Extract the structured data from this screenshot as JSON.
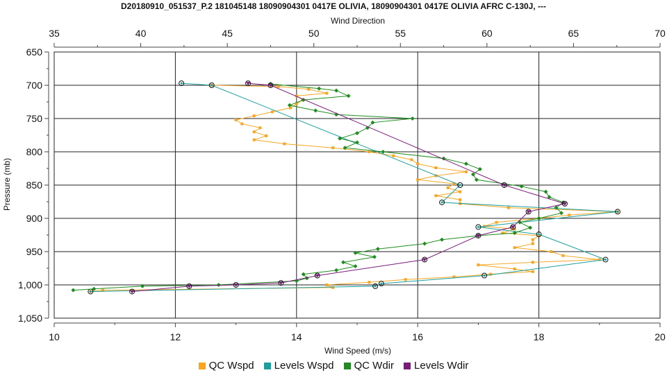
{
  "chart_data": {
    "type": "line",
    "title": "D20180910_051537_P.2 181045148 18090904301 0417E OLIVIA, 18090904301 0417E OLIVIA AFRC C-130J, ---",
    "top_axis_label": "Wind Direction",
    "xlabel": "Wind Speed (m/s)",
    "ylabel": "Pressure (mb)",
    "x_bottom_range": [
      10,
      20
    ],
    "x_bottom_ticks": [
      "10",
      "12",
      "14",
      "16",
      "18",
      "20"
    ],
    "x_top_range": [
      35,
      70
    ],
    "x_top_ticks": [
      "35",
      "40",
      "45",
      "50",
      "55",
      "60",
      "65",
      "70"
    ],
    "y_range": [
      650,
      1050
    ],
    "y_inverted": true,
    "y_ticks": [
      "650",
      "700",
      "750",
      "800",
      "850",
      "900",
      "950",
      "1,000",
      "1,050"
    ],
    "grid": true,
    "legend_position": "bottom",
    "series": [
      {
        "name": "QC Wspd",
        "axis": "bottom",
        "color": "#f5a623",
        "values": [
          [
            12.6,
            700
          ],
          [
            13.7,
            702
          ],
          [
            14.2,
            706
          ],
          [
            14.5,
            712
          ],
          [
            14.0,
            716
          ],
          [
            14.1,
            722
          ],
          [
            14.0,
            728
          ],
          [
            13.9,
            734
          ],
          [
            13.6,
            740
          ],
          [
            13.3,
            746
          ],
          [
            13.0,
            752
          ],
          [
            13.1,
            758
          ],
          [
            13.4,
            764
          ],
          [
            13.3,
            770
          ],
          [
            13.5,
            776
          ],
          [
            13.3,
            782
          ],
          [
            13.8,
            788
          ],
          [
            14.6,
            794
          ],
          [
            15.2,
            800
          ],
          [
            15.6,
            806
          ],
          [
            15.9,
            812
          ],
          [
            16.0,
            818
          ],
          [
            16.3,
            824
          ],
          [
            16.8,
            830
          ],
          [
            16.3,
            836
          ],
          [
            16.0,
            842
          ],
          [
            16.6,
            848
          ],
          [
            16.5,
            854
          ],
          [
            16.7,
            860
          ],
          [
            16.3,
            866
          ],
          [
            16.7,
            872
          ],
          [
            16.7,
            878
          ],
          [
            17.5,
            884
          ],
          [
            19.3,
            890
          ],
          [
            18.5,
            895
          ],
          [
            18.0,
            900
          ],
          [
            17.3,
            906
          ],
          [
            17.1,
            912
          ],
          [
            17.6,
            916
          ],
          [
            17.4,
            922
          ],
          [
            18.0,
            926
          ],
          [
            17.9,
            932
          ],
          [
            17.9,
            938
          ],
          [
            17.6,
            944
          ],
          [
            18.2,
            950
          ],
          [
            18.4,
            956
          ],
          [
            19.0,
            962
          ],
          [
            17.9,
            966
          ],
          [
            17.0,
            970
          ],
          [
            17.6,
            976
          ],
          [
            17.9,
            980
          ],
          [
            17.2,
            984
          ],
          [
            16.6,
            988
          ],
          [
            15.8,
            992
          ],
          [
            15.2,
            996
          ],
          [
            14.5,
            1000
          ],
          [
            14.6,
            1004
          ],
          [
            10.8,
            1008
          ],
          [
            10.6,
            1010
          ]
        ]
      },
      {
        "name": "Levels Wspd",
        "axis": "bottom",
        "color": "#1a9e9e",
        "values": [
          [
            12.1,
            697
          ],
          [
            12.6,
            700
          ],
          [
            16.7,
            850
          ],
          [
            16.4,
            876
          ],
          [
            19.3,
            890
          ],
          [
            17.0,
            913
          ],
          [
            18.0,
            924
          ],
          [
            19.1,
            962
          ],
          [
            17.1,
            986
          ],
          [
            15.4,
            998
          ],
          [
            15.3,
            1002
          ],
          [
            10.6,
            1010
          ]
        ]
      },
      {
        "name": "QC Wdir",
        "axis": "top",
        "color": "#1e8c1e",
        "values": [
          [
            47.5,
            698
          ],
          [
            50.3,
            705
          ],
          [
            51.3,
            708
          ],
          [
            52.0,
            716
          ],
          [
            49.4,
            722
          ],
          [
            48.6,
            730
          ],
          [
            50.1,
            738
          ],
          [
            51.3,
            744
          ],
          [
            55.7,
            750
          ],
          [
            53.4,
            756
          ],
          [
            53.1,
            764
          ],
          [
            52.5,
            772
          ],
          [
            51.5,
            780
          ],
          [
            52.5,
            786
          ],
          [
            51.8,
            794
          ],
          [
            54.0,
            800
          ],
          [
            57.5,
            810
          ],
          [
            58.8,
            818
          ],
          [
            59.6,
            826
          ],
          [
            59.2,
            834
          ],
          [
            59.4,
            842
          ],
          [
            62.0,
            852
          ],
          [
            63.4,
            860
          ],
          [
            63.6,
            868
          ],
          [
            64.4,
            876
          ],
          [
            64.0,
            884
          ],
          [
            64.3,
            892
          ],
          [
            63.0,
            900
          ],
          [
            61.9,
            906
          ],
          [
            62.5,
            914
          ],
          [
            61.6,
            922
          ],
          [
            59.5,
            926
          ],
          [
            57.4,
            932
          ],
          [
            56.4,
            938
          ],
          [
            53.7,
            946
          ],
          [
            52.4,
            952
          ],
          [
            53.5,
            958
          ],
          [
            51.7,
            966
          ],
          [
            52.4,
            972
          ],
          [
            51.3,
            978
          ],
          [
            49.4,
            984
          ],
          [
            49.6,
            990
          ],
          [
            49.0,
            994
          ],
          [
            44.5,
            1000
          ],
          [
            40.1,
            1002
          ],
          [
            37.3,
            1006
          ],
          [
            36.1,
            1008
          ]
        ]
      },
      {
        "name": "Levels Wdir",
        "axis": "top",
        "color": "#7b1a7b",
        "values": [
          [
            46.2,
            697
          ],
          [
            47.5,
            700
          ],
          [
            61.0,
            850
          ],
          [
            64.5,
            878
          ],
          [
            62.4,
            890
          ],
          [
            61.5,
            913
          ],
          [
            59.5,
            926
          ],
          [
            56.4,
            962
          ],
          [
            50.2,
            986
          ],
          [
            48.1,
            997
          ],
          [
            45.5,
            1000
          ],
          [
            42.8,
            1002
          ],
          [
            39.5,
            1010
          ]
        ]
      }
    ]
  }
}
